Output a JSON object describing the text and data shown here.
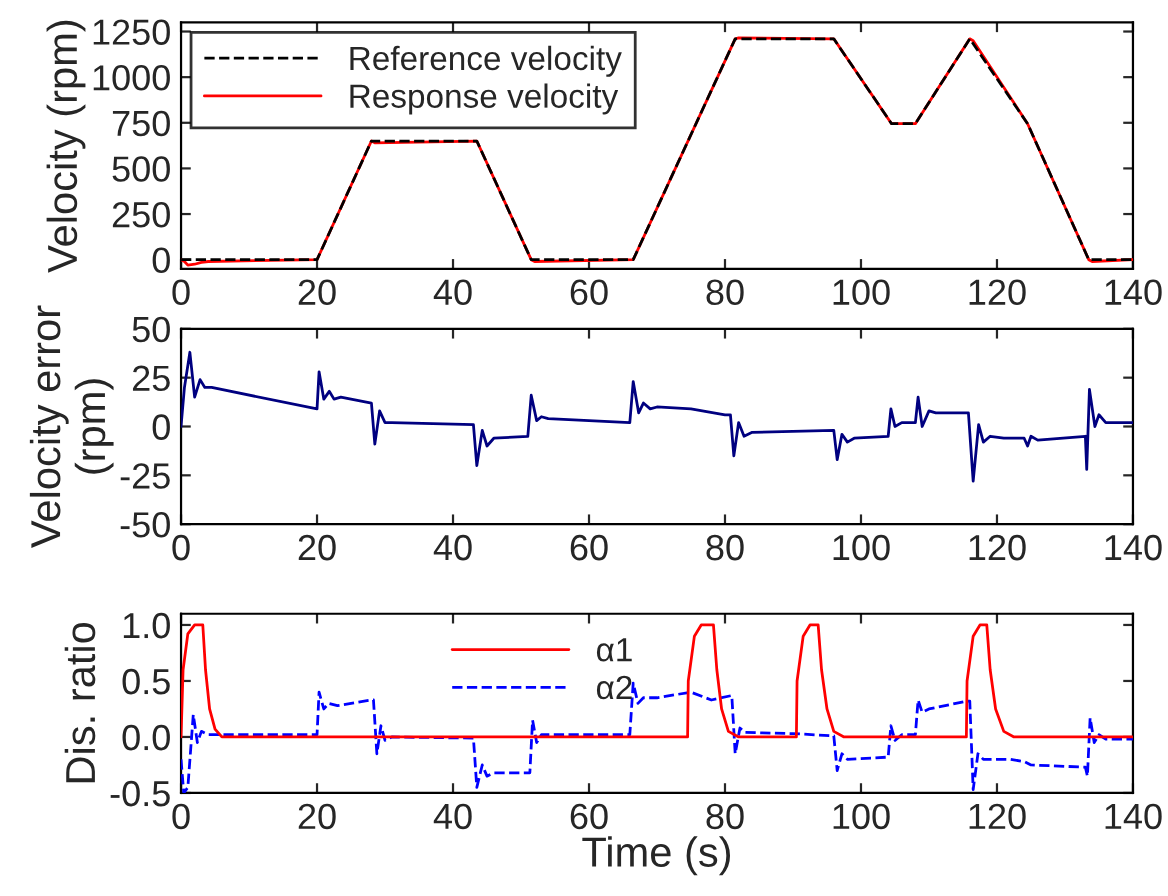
{
  "chart_data": [
    {
      "type": "line",
      "ylabel": "Velocity (rpm)",
      "xlim": [
        0,
        140
      ],
      "xticks": [
        0,
        20,
        40,
        60,
        80,
        100,
        120,
        140
      ],
      "ylim": [
        -50,
        1300
      ],
      "yticks": [
        0,
        250,
        500,
        750,
        1000,
        1250
      ],
      "legend": "top left",
      "grid": false,
      "series": [
        {
          "name": "Reference velocity",
          "color": "#000000",
          "line_style": "dashed",
          "x": [
            0,
            20,
            28,
            43.5,
            51.5,
            66.5,
            81.5,
            96,
            104.5,
            108,
            116,
            124.5,
            133.5,
            140
          ],
          "values": [
            0,
            0,
            650,
            650,
            0,
            0,
            1210,
            1210,
            745,
            745,
            1210,
            745,
            0,
            0
          ]
        },
        {
          "name": "Response velocity",
          "color": "#ff0000",
          "line_style": "solid",
          "x": [
            0,
            0.5,
            1,
            2,
            3,
            4,
            20,
            28,
            28.5,
            43.5,
            51.5,
            52,
            66.5,
            81.5,
            82,
            96,
            104.5,
            108,
            116,
            116.5,
            124.5,
            133.5,
            134,
            140
          ],
          "values": [
            0,
            -10,
            -30,
            -25,
            -15,
            -10,
            0,
            650,
            640,
            650,
            0,
            -10,
            0,
            1210,
            1215,
            1210,
            745,
            745,
            1210,
            1200,
            745,
            0,
            -10,
            0
          ]
        }
      ]
    },
    {
      "type": "line",
      "ylabel": "Velocity error\n(rpm)",
      "xlim": [
        0,
        140
      ],
      "xticks": [
        0,
        20,
        40,
        60,
        80,
        100,
        120,
        140
      ],
      "ylim": [
        -50,
        50
      ],
      "yticks": [
        -50,
        -25,
        0,
        25,
        50
      ],
      "grid": false,
      "series": [
        {
          "color": "#000080",
          "line_style": "solid",
          "x": [
            0,
            0.5,
            1.3,
            2,
            2.8,
            3.5,
            4.5,
            20,
            20.3,
            21,
            21.8,
            22.5,
            23.5,
            28,
            28.5,
            29.2,
            30,
            31,
            43,
            43.5,
            44.3,
            45,
            46,
            51,
            51.5,
            52.3,
            53,
            54,
            66,
            66.5,
            67.3,
            68,
            69,
            70,
            75,
            80,
            80.8,
            81.3,
            82,
            82.8,
            84,
            96,
            96.5,
            97.2,
            98,
            99,
            104,
            104.4,
            105,
            106,
            108,
            108.4,
            109,
            110,
            111,
            115.8,
            116.5,
            117.3,
            118,
            119,
            121,
            124,
            124.5,
            125,
            126,
            133,
            133.2,
            133.6,
            134.4,
            135,
            136,
            140
          ],
          "values": [
            0,
            20,
            38,
            15,
            24,
            20,
            20,
            9,
            28,
            14,
            18,
            14,
            15,
            12,
            -9,
            8,
            2,
            2,
            1,
            -20,
            -2,
            -10,
            -6,
            -5,
            16,
            3,
            5,
            4,
            2,
            23,
            7,
            12,
            9,
            10,
            9,
            6,
            6,
            -15,
            2,
            -5,
            -3,
            -2,
            -17,
            -4,
            -8,
            -6,
            -5,
            9,
            0,
            2,
            2,
            15,
            0,
            8,
            7,
            7,
            -28,
            1,
            -8,
            -5,
            -6,
            -6,
            -10,
            -5,
            -7,
            -5,
            -22,
            19,
            0,
            6,
            2,
            2
          ]
        }
      ]
    },
    {
      "type": "line",
      "ylabel": "Dis. ratio",
      "xlabel": "Time (s)",
      "xlim": [
        0,
        140
      ],
      "xticks": [
        0,
        20,
        40,
        60,
        80,
        100,
        120,
        140
      ],
      "ylim": [
        -0.5,
        1.1
      ],
      "yticks": [
        {
          "value": -0.5,
          "label": "-0.5"
        },
        {
          "value": 0,
          "label": "0.0"
        },
        {
          "value": 0.5,
          "label": "0.5"
        },
        {
          "value": 1,
          "label": "1.0"
        }
      ],
      "legend": "top",
      "grid": false,
      "series": [
        {
          "name": "α1",
          "color": "#ff0000",
          "line_style": "solid",
          "x": [
            0,
            0.3,
            1,
            2,
            3.2,
            3.6,
            4.2,
            5,
            6,
            74.5,
            74.6,
            75.5,
            76.5,
            78.3,
            78.8,
            79.5,
            80.5,
            82,
            90.5,
            90.6,
            91.5,
            92.5,
            93.7,
            94.2,
            95,
            96,
            97.5,
            115.5,
            115.6,
            116.5,
            117.5,
            118.5,
            119,
            119.8,
            121,
            122.5,
            140
          ],
          "values": [
            0,
            0.6,
            0.92,
            1,
            1,
            0.6,
            0.25,
            0.07,
            0,
            0,
            0.5,
            0.9,
            1,
            1,
            0.6,
            0.25,
            0.05,
            0,
            0,
            0.5,
            0.9,
            1,
            1,
            0.6,
            0.25,
            0.05,
            0,
            0,
            0.5,
            0.9,
            1,
            1,
            0.6,
            0.25,
            0.05,
            0,
            0
          ]
        },
        {
          "name": "α2",
          "color": "#0000ff",
          "line_style": "dashed",
          "x": [
            0,
            0.4,
            1,
            1.8,
            2.4,
            3,
            4,
            20,
            20.3,
            21,
            21.7,
            23,
            28,
            28.3,
            28.8,
            29.4,
            30,
            31,
            43,
            43.5,
            44.3,
            45,
            46,
            51.3,
            51.7,
            52.3,
            53,
            66,
            66.5,
            67.2,
            68,
            70,
            75,
            78,
            81,
            81.5,
            82.2,
            83,
            90,
            96,
            96.5,
            97.2,
            98,
            104,
            104.4,
            105,
            106,
            108,
            108.4,
            109,
            110,
            115.6,
            116,
            116.5,
            117.2,
            118,
            122,
            124,
            125,
            133,
            133.3,
            133.7,
            134.3,
            135,
            136,
            140
          ],
          "values": [
            -0.2,
            -0.5,
            -0.45,
            0.2,
            -0.05,
            0.05,
            0.02,
            0.02,
            0.4,
            0.25,
            0.3,
            0.28,
            0.33,
            0.33,
            -0.15,
            0.1,
            -0.03,
            0,
            -0.01,
            -0.45,
            -0.25,
            -0.35,
            -0.32,
            -0.32,
            0.15,
            -0.05,
            0.02,
            0.02,
            0.48,
            0.3,
            0.35,
            0.35,
            0.4,
            0.33,
            0.37,
            -0.15,
            0.08,
            0.04,
            0.03,
            0.01,
            -0.3,
            -0.15,
            -0.2,
            -0.18,
            0.1,
            -0.03,
            0.02,
            0.02,
            0.33,
            0.22,
            0.25,
            0.32,
            0.32,
            -0.47,
            -0.15,
            -0.2,
            -0.2,
            -0.22,
            -0.25,
            -0.27,
            -0.35,
            0.17,
            -0.05,
            0.02,
            -0.02,
            -0.02
          ]
        }
      ]
    }
  ]
}
